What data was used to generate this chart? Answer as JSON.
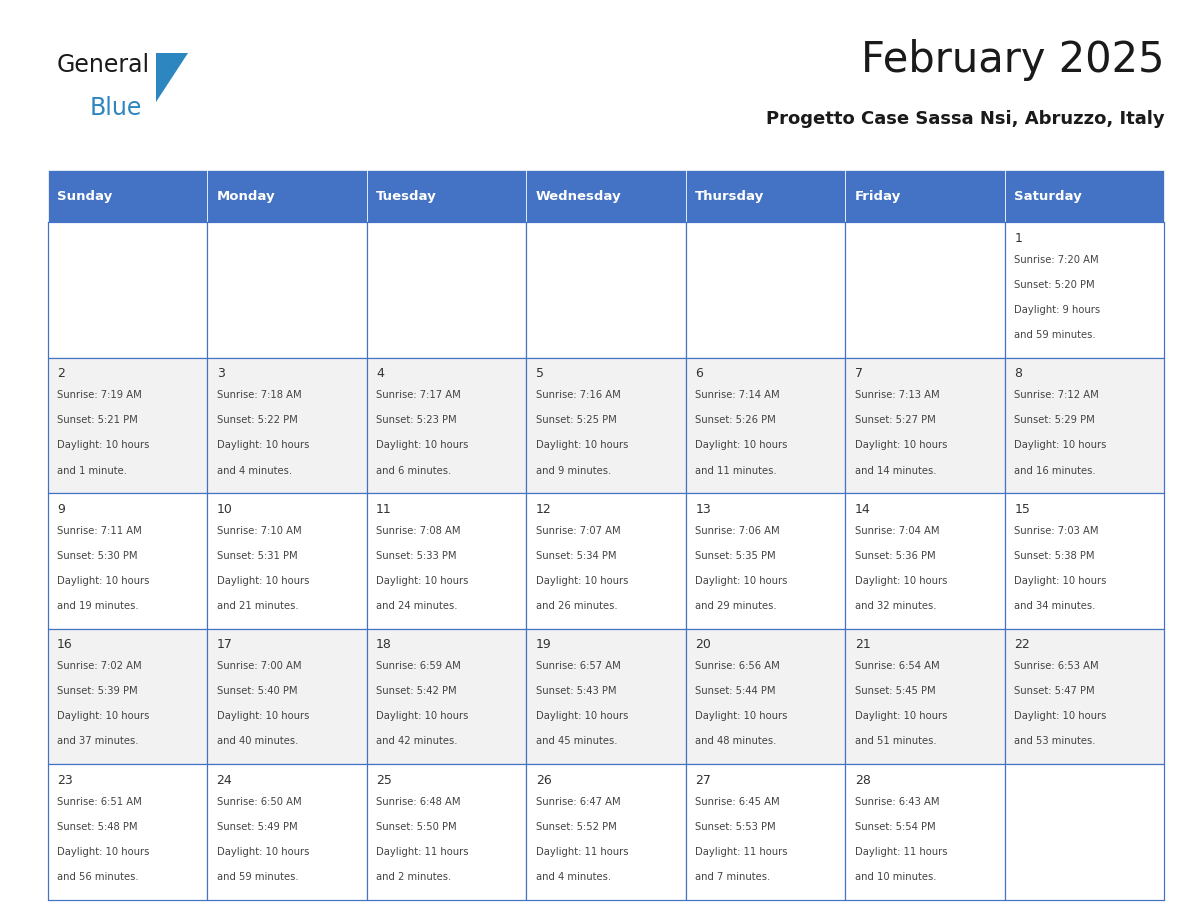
{
  "title": "February 2025",
  "subtitle": "Progetto Case Sassa Nsi, Abruzzo, Italy",
  "days_of_week": [
    "Sunday",
    "Monday",
    "Tuesday",
    "Wednesday",
    "Thursday",
    "Friday",
    "Saturday"
  ],
  "header_bg": "#4472C4",
  "header_text": "#FFFFFF",
  "cell_bg_odd": "#F2F2F2",
  "cell_bg_even": "#FFFFFF",
  "cell_border": "#4472C4",
  "day_num_color": "#333333",
  "text_color": "#444444",
  "title_color": "#1a1a1a",
  "logo_general_color": "#1a1a1a",
  "logo_blue_color": "#2E86C1",
  "logo_triangle_color": "#2E86C1",
  "calendar": [
    [
      null,
      null,
      null,
      null,
      null,
      null,
      {
        "day": 1,
        "lines": [
          "Sunrise: 7:20 AM",
          "Sunset: 5:20 PM",
          "Daylight: 9 hours",
          "and 59 minutes."
        ]
      }
    ],
    [
      {
        "day": 2,
        "lines": [
          "Sunrise: 7:19 AM",
          "Sunset: 5:21 PM",
          "Daylight: 10 hours",
          "and 1 minute."
        ]
      },
      {
        "day": 3,
        "lines": [
          "Sunrise: 7:18 AM",
          "Sunset: 5:22 PM",
          "Daylight: 10 hours",
          "and 4 minutes."
        ]
      },
      {
        "day": 4,
        "lines": [
          "Sunrise: 7:17 AM",
          "Sunset: 5:23 PM",
          "Daylight: 10 hours",
          "and 6 minutes."
        ]
      },
      {
        "day": 5,
        "lines": [
          "Sunrise: 7:16 AM",
          "Sunset: 5:25 PM",
          "Daylight: 10 hours",
          "and 9 minutes."
        ]
      },
      {
        "day": 6,
        "lines": [
          "Sunrise: 7:14 AM",
          "Sunset: 5:26 PM",
          "Daylight: 10 hours",
          "and 11 minutes."
        ]
      },
      {
        "day": 7,
        "lines": [
          "Sunrise: 7:13 AM",
          "Sunset: 5:27 PM",
          "Daylight: 10 hours",
          "and 14 minutes."
        ]
      },
      {
        "day": 8,
        "lines": [
          "Sunrise: 7:12 AM",
          "Sunset: 5:29 PM",
          "Daylight: 10 hours",
          "and 16 minutes."
        ]
      }
    ],
    [
      {
        "day": 9,
        "lines": [
          "Sunrise: 7:11 AM",
          "Sunset: 5:30 PM",
          "Daylight: 10 hours",
          "and 19 minutes."
        ]
      },
      {
        "day": 10,
        "lines": [
          "Sunrise: 7:10 AM",
          "Sunset: 5:31 PM",
          "Daylight: 10 hours",
          "and 21 minutes."
        ]
      },
      {
        "day": 11,
        "lines": [
          "Sunrise: 7:08 AM",
          "Sunset: 5:33 PM",
          "Daylight: 10 hours",
          "and 24 minutes."
        ]
      },
      {
        "day": 12,
        "lines": [
          "Sunrise: 7:07 AM",
          "Sunset: 5:34 PM",
          "Daylight: 10 hours",
          "and 26 minutes."
        ]
      },
      {
        "day": 13,
        "lines": [
          "Sunrise: 7:06 AM",
          "Sunset: 5:35 PM",
          "Daylight: 10 hours",
          "and 29 minutes."
        ]
      },
      {
        "day": 14,
        "lines": [
          "Sunrise: 7:04 AM",
          "Sunset: 5:36 PM",
          "Daylight: 10 hours",
          "and 32 minutes."
        ]
      },
      {
        "day": 15,
        "lines": [
          "Sunrise: 7:03 AM",
          "Sunset: 5:38 PM",
          "Daylight: 10 hours",
          "and 34 minutes."
        ]
      }
    ],
    [
      {
        "day": 16,
        "lines": [
          "Sunrise: 7:02 AM",
          "Sunset: 5:39 PM",
          "Daylight: 10 hours",
          "and 37 minutes."
        ]
      },
      {
        "day": 17,
        "lines": [
          "Sunrise: 7:00 AM",
          "Sunset: 5:40 PM",
          "Daylight: 10 hours",
          "and 40 minutes."
        ]
      },
      {
        "day": 18,
        "lines": [
          "Sunrise: 6:59 AM",
          "Sunset: 5:42 PM",
          "Daylight: 10 hours",
          "and 42 minutes."
        ]
      },
      {
        "day": 19,
        "lines": [
          "Sunrise: 6:57 AM",
          "Sunset: 5:43 PM",
          "Daylight: 10 hours",
          "and 45 minutes."
        ]
      },
      {
        "day": 20,
        "lines": [
          "Sunrise: 6:56 AM",
          "Sunset: 5:44 PM",
          "Daylight: 10 hours",
          "and 48 minutes."
        ]
      },
      {
        "day": 21,
        "lines": [
          "Sunrise: 6:54 AM",
          "Sunset: 5:45 PM",
          "Daylight: 10 hours",
          "and 51 minutes."
        ]
      },
      {
        "day": 22,
        "lines": [
          "Sunrise: 6:53 AM",
          "Sunset: 5:47 PM",
          "Daylight: 10 hours",
          "and 53 minutes."
        ]
      }
    ],
    [
      {
        "day": 23,
        "lines": [
          "Sunrise: 6:51 AM",
          "Sunset: 5:48 PM",
          "Daylight: 10 hours",
          "and 56 minutes."
        ]
      },
      {
        "day": 24,
        "lines": [
          "Sunrise: 6:50 AM",
          "Sunset: 5:49 PM",
          "Daylight: 10 hours",
          "and 59 minutes."
        ]
      },
      {
        "day": 25,
        "lines": [
          "Sunrise: 6:48 AM",
          "Sunset: 5:50 PM",
          "Daylight: 11 hours",
          "and 2 minutes."
        ]
      },
      {
        "day": 26,
        "lines": [
          "Sunrise: 6:47 AM",
          "Sunset: 5:52 PM",
          "Daylight: 11 hours",
          "and 4 minutes."
        ]
      },
      {
        "day": 27,
        "lines": [
          "Sunrise: 6:45 AM",
          "Sunset: 5:53 PM",
          "Daylight: 11 hours",
          "and 7 minutes."
        ]
      },
      {
        "day": 28,
        "lines": [
          "Sunrise: 6:43 AM",
          "Sunset: 5:54 PM",
          "Daylight: 11 hours",
          "and 10 minutes."
        ]
      },
      null
    ]
  ]
}
